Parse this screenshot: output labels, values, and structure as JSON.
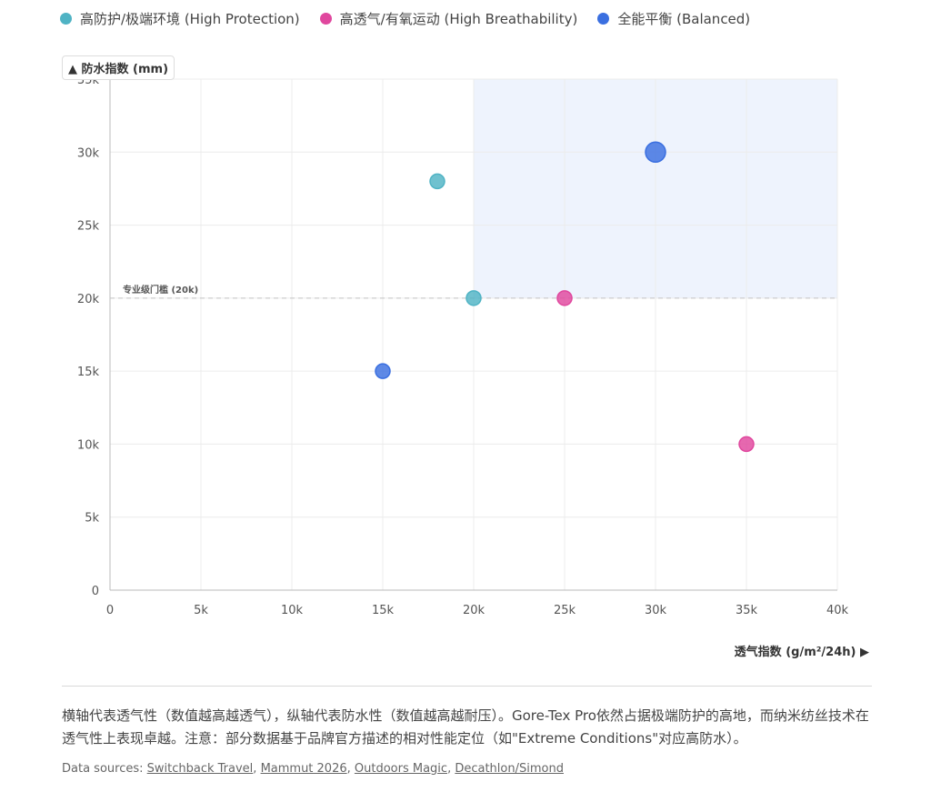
{
  "legend": [
    {
      "label": "高防护/极端环境 (High Protection)",
      "color": "#4fb3c4"
    },
    {
      "label": "高透气/有氧运动 (High Breathability)",
      "color": "#e0479e"
    },
    {
      "label": "全能平衡 (Balanced)",
      "color": "#3a6fe0"
    }
  ],
  "axes": {
    "ylabel": "▲ 防水指数 (mm)",
    "xlabel": "透气指数 (g/m²/24h) ▶"
  },
  "chart_data": {
    "type": "scatter",
    "xlim": [
      0,
      40000
    ],
    "ylim": [
      0,
      35000
    ],
    "x_ticks": [
      0,
      5000,
      10000,
      15000,
      20000,
      25000,
      30000,
      35000,
      40000
    ],
    "x_tick_labels": [
      "0",
      "5k",
      "10k",
      "15k",
      "20k",
      "25k",
      "30k",
      "35k",
      "40k"
    ],
    "y_ticks": [
      0,
      5000,
      10000,
      15000,
      20000,
      25000,
      30000,
      35000
    ],
    "y_tick_labels": [
      "0",
      "5k",
      "10k",
      "15k",
      "20k",
      "25k",
      "30k",
      "35k"
    ],
    "grid": true,
    "legend_placement": "top-left",
    "threshold": {
      "y": 20000,
      "label": "专业级门槛 (20k)"
    },
    "highlight_region": {
      "x": [
        20000,
        40000
      ],
      "y": [
        20000,
        35000
      ]
    },
    "series": [
      {
        "name": "高防护/极端环境 (High Protection)",
        "color": "#4fb3c4",
        "points": [
          {
            "x": 18000,
            "y": 28000,
            "size": "medium"
          },
          {
            "x": 20000,
            "y": 20000,
            "size": "medium"
          }
        ]
      },
      {
        "name": "高透气/有氧运动 (High Breathability)",
        "color": "#e0479e",
        "points": [
          {
            "x": 25000,
            "y": 20000,
            "size": "medium"
          },
          {
            "x": 35000,
            "y": 10000,
            "size": "medium"
          }
        ]
      },
      {
        "name": "全能平衡 (Balanced)",
        "color": "#3a6fe0",
        "points": [
          {
            "x": 30000,
            "y": 30000,
            "size": "large"
          },
          {
            "x": 15000,
            "y": 15000,
            "size": "medium"
          }
        ]
      }
    ]
  },
  "note": "横轴代表透气性（数值越高越透气），纵轴代表防水性（数值越高越耐压）。Gore-Tex Pro依然占据极端防护的高地，而纳米纺丝技术在透气性上表现卓越。注意：部分数据基于品牌官方描述的相对性能定位（如\"Extreme Conditions\"对应高防水）。",
  "sources": {
    "prefix": "Data sources: ",
    "links": [
      "Switchback Travel",
      "Mammut 2026",
      "Outdoors Magic",
      "Decathlon/Simond"
    ]
  }
}
